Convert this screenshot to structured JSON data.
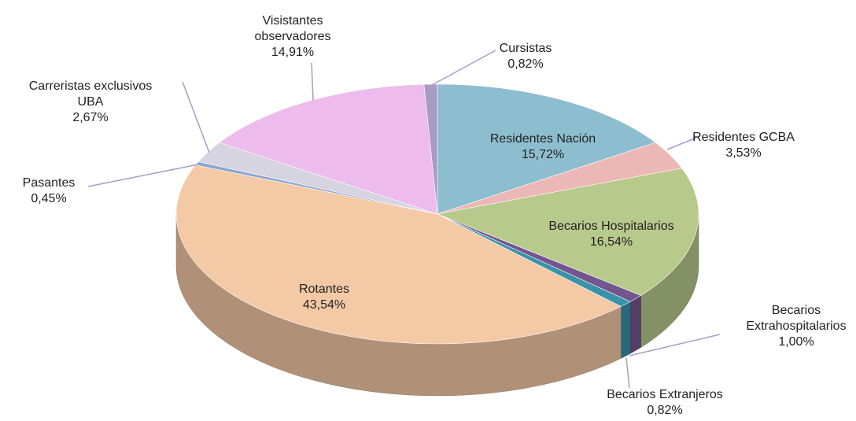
{
  "chart_data": {
    "type": "pie",
    "categories": [
      "Residentes Nación",
      "Residentes GCBA",
      "Becarios Hospitalarios",
      "Becarios Extrahospitalarios",
      "Becarios Extranjeros",
      "Rotantes",
      "Pasantes",
      "Carreristas exclusivos UBA",
      "Visistantes observadores",
      "Cursistas"
    ],
    "values": [
      15.72,
      3.53,
      16.54,
      1.0,
      0.82,
      43.54,
      0.45,
      2.67,
      14.91,
      0.82
    ],
    "value_labels": [
      "15,72%",
      "3,53%",
      "16,54%",
      "1,00%",
      "0,82%",
      "43,54%",
      "0,45%",
      "2,67%",
      "14,91%",
      "0,82%"
    ],
    "colors": [
      "#8dbecf",
      "#ecb8b7",
      "#b8c98c",
      "#735690",
      "#3a92a8",
      "#f4c9a6",
      "#8ea7cf",
      "#d6d4e1",
      "#edbbec",
      "#a89bc6"
    ]
  }
}
